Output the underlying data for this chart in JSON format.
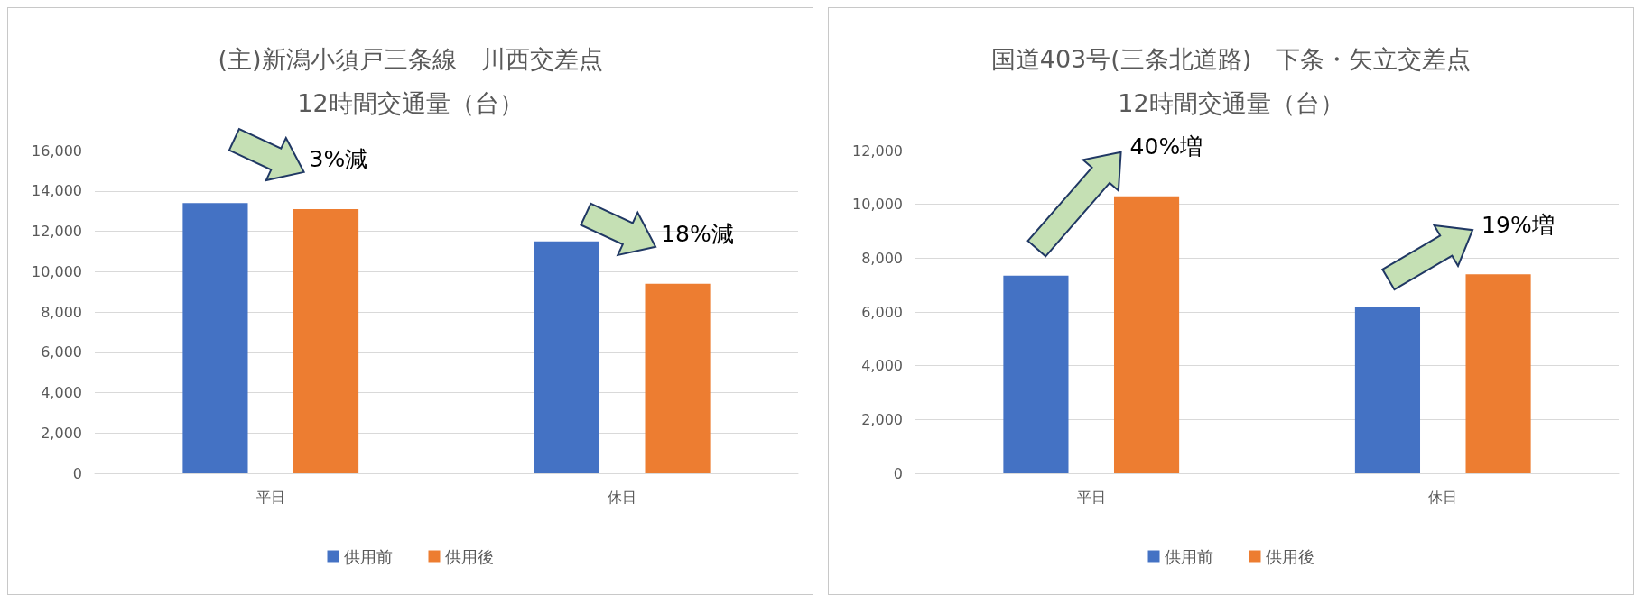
{
  "chart_data": [
    {
      "type": "bar",
      "title": "(主)新潟小須戸三条線　川西交差点",
      "subtitle": "12時間交通量（台）",
      "categories": [
        "平日",
        "休日"
      ],
      "series": [
        {
          "name": "供用前",
          "color": "#4472c4",
          "values": [
            13400,
            11500
          ]
        },
        {
          "name": "供用後",
          "color": "#ed7d31",
          "values": [
            13100,
            9400
          ]
        }
      ],
      "ylim": [
        0,
        16000
      ],
      "yticks": [
        0,
        {
          "value": 2000,
          "label": "2,000"
        },
        {
          "value": 4000,
          "label": "4,000"
        },
        {
          "value": 6000,
          "label": "6,000"
        },
        {
          "value": 8000,
          "label": "8,000"
        },
        {
          "value": 10000,
          "label": "10,000"
        },
        {
          "value": 12000,
          "label": "12,000"
        },
        {
          "value": 14000,
          "label": "14,000"
        },
        {
          "value": 16000,
          "label": "16,000"
        }
      ],
      "grid": "y",
      "legend": "bottom",
      "annotations": [
        "3%減",
        "18%減"
      ]
    },
    {
      "type": "bar",
      "title": "国道403号(三条北道路)　下条・矢立交差点",
      "subtitle": "12時間交通量（台）",
      "categories": [
        "平日",
        "休日"
      ],
      "series": [
        {
          "name": "供用前",
          "color": "#4472c4",
          "values": [
            7350,
            6200
          ]
        },
        {
          "name": "供用後",
          "color": "#ed7d31",
          "values": [
            10300,
            7400
          ]
        }
      ],
      "ylim": [
        0,
        12000
      ],
      "yticks": [
        0,
        {
          "value": 2000,
          "label": "2,000"
        },
        {
          "value": 4000,
          "label": "4,000"
        },
        {
          "value": 6000,
          "label": "6,000"
        },
        {
          "value": 8000,
          "label": "8,000"
        },
        {
          "value": 10000,
          "label": "10,000"
        },
        {
          "value": 12000,
          "label": "12,000"
        }
      ],
      "grid": "y",
      "legend": "bottom",
      "annotations": [
        "40%増",
        "19%増"
      ]
    }
  ]
}
